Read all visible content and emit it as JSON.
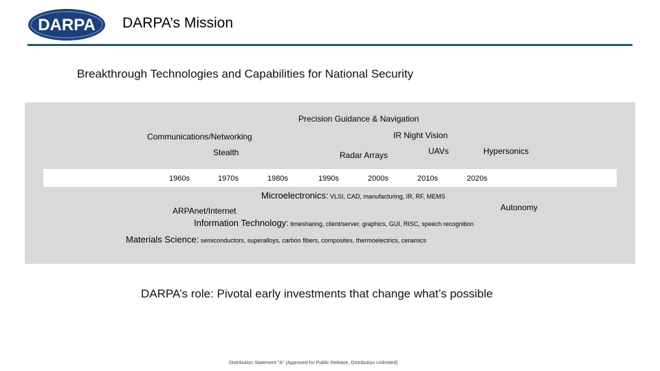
{
  "header": {
    "logo_text": "DARPA",
    "title": "DARPA’s Mission"
  },
  "subtitle": "Breakthrough Technologies and Capabilities for National Security",
  "timeline": {
    "decades": [
      "1960s",
      "1970s",
      "1980s",
      "1990s",
      "2000s",
      "2010s",
      "2020s"
    ],
    "technologies": {
      "precision_guidance": "Precision Guidance & Navigation",
      "comms": "Communications/Networking",
      "ir_night": "IR Night Vision",
      "stealth": "Stealth",
      "radar": "Radar Arrays",
      "uavs": "UAVs",
      "hypersonics": "Hypersonics",
      "autonomy": "Autonomy",
      "arpanet": "ARPAnet/Internet"
    },
    "microelectronics": {
      "label": "Microelectronics:",
      "detail": " VLSI, CAD, manufacturing, IR, RF, MEMS"
    },
    "info_tech": {
      "label": "Information Technology:",
      "detail": " timesharing, client/server, graphics, GUI, RISC, speech recognition"
    },
    "materials": {
      "label": "Materials Science:",
      "detail": " semiconductors, superalloys, carbon fibers, composites, thermoelectrics, ceramics"
    }
  },
  "role_statement": "DARPA’s role: Pivotal early investments that change what’s possible",
  "footer": "Distribution Statement \"A\" (Approved for Public Release, Distribution Unlimited)",
  "colors": {
    "logo_blue": "#1d3f7a",
    "rule": "#1f5b6e",
    "panel": "#d9d9d9"
  }
}
